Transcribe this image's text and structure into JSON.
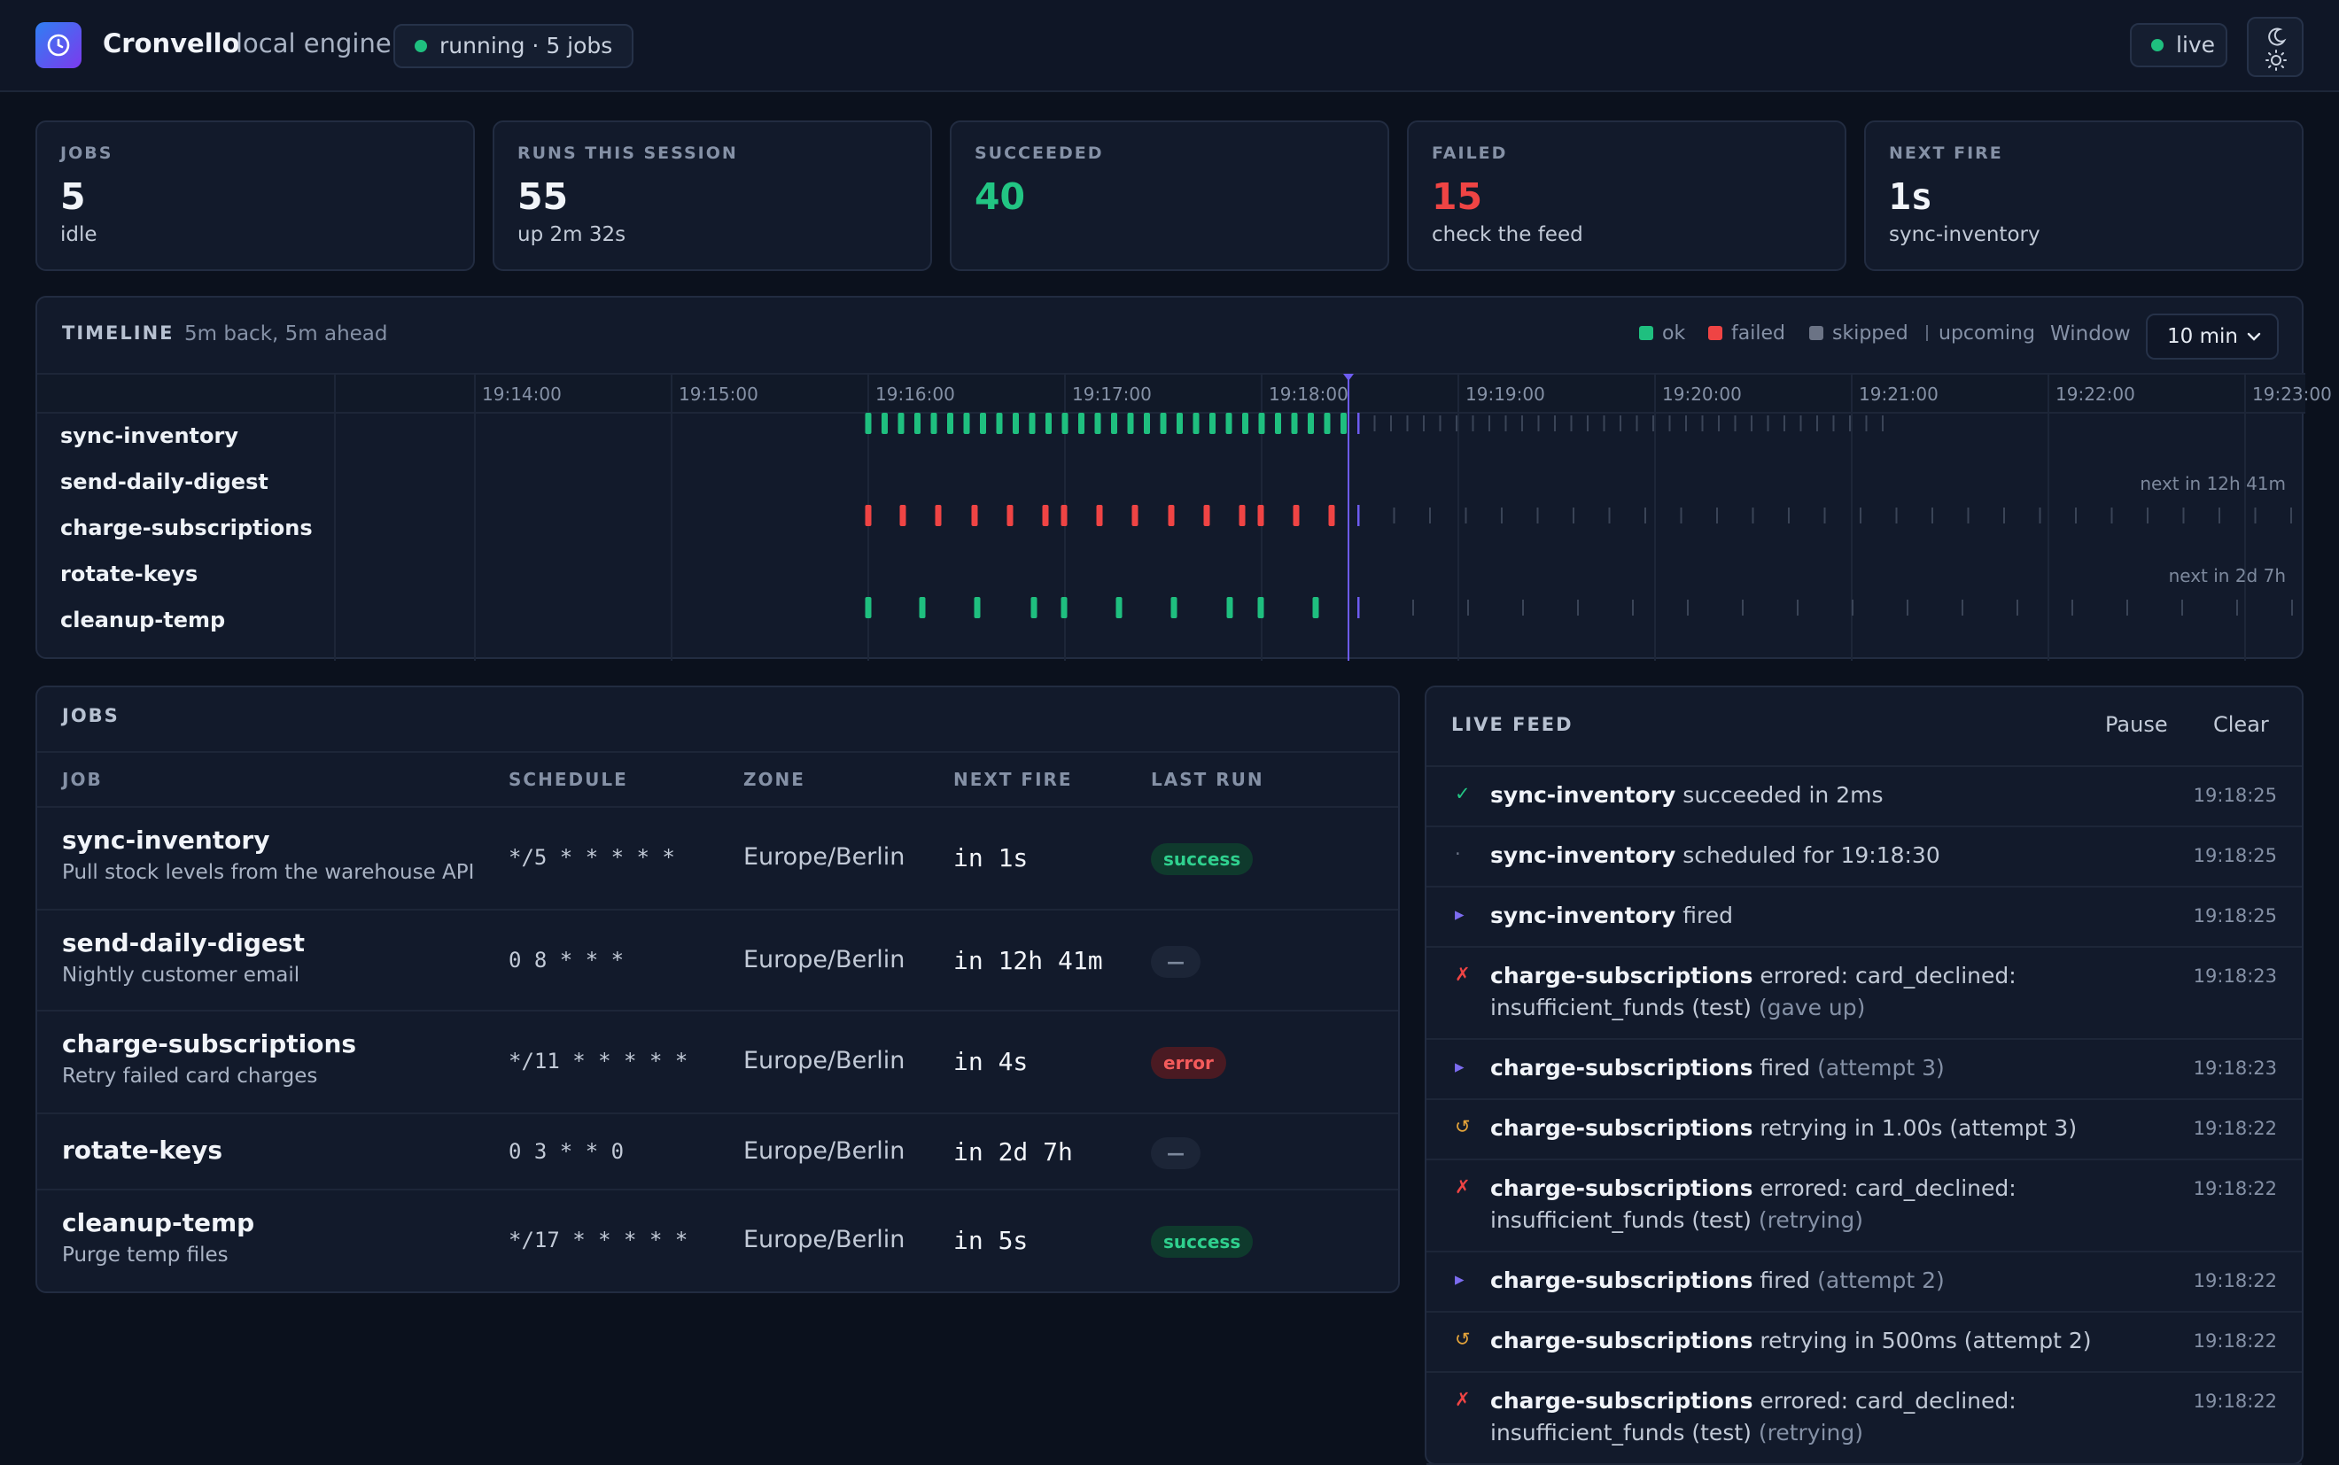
{
  "header": {
    "brand": "Cronvello",
    "engine": "local engine",
    "status": "running · 5 jobs",
    "live": "live",
    "colors": {
      "accent": "#7c3aed",
      "ok": "#1fbf7f",
      "failed": "#ef4444"
    }
  },
  "stats": [
    {
      "label": "JOBS",
      "value": "5",
      "sub": "idle"
    },
    {
      "label": "RUNS THIS SESSION",
      "value": "55",
      "sub": "up 2m 32s"
    },
    {
      "label": "SUCCEEDED",
      "value": "40",
      "sub": ""
    },
    {
      "label": "FAILED",
      "value": "15",
      "sub": "check the feed"
    },
    {
      "label": "NEXT FIRE",
      "value": "1s",
      "sub": "sync-inventory"
    }
  ],
  "timeline": {
    "title": "TIMELINE",
    "subtitle": "5m back, 5m ahead",
    "legend": {
      "ok": "ok",
      "failed": "failed",
      "skipped": "skipped",
      "upcoming": "upcoming"
    },
    "window_label": "Window",
    "window_value": "10 min",
    "ticks": [
      "19:14:00",
      "19:15:00",
      "19:16:00",
      "19:17:00",
      "19:18:00",
      "19:19:00",
      "19:20:00",
      "19:21:00",
      "19:22:00",
      "19:23:00"
    ],
    "rows": [
      {
        "name": "sync-inventory",
        "next_note": ""
      },
      {
        "name": "send-daily-digest",
        "next_note": "next in 12h 41m"
      },
      {
        "name": "charge-subscriptions",
        "next_note": ""
      },
      {
        "name": "rotate-keys",
        "next_note": "next in 2d 7h"
      },
      {
        "name": "cleanup-temp",
        "next_note": ""
      }
    ]
  },
  "jobs": {
    "title": "JOBS",
    "columns": {
      "job": "JOB",
      "schedule": "SCHEDULE",
      "zone": "ZONE",
      "next_fire": "NEXT FIRE",
      "last_run": "LAST RUN"
    },
    "rows": [
      {
        "name": "sync-inventory",
        "desc": "Pull stock levels from the warehouse API",
        "schedule": "*/5 * * * * *",
        "zone": "Europe/Berlin",
        "next": "in 1s",
        "last": "success"
      },
      {
        "name": "send-daily-digest",
        "desc": "Nightly customer email",
        "schedule": "0 8 * * *",
        "zone": "Europe/Berlin",
        "next": "in 12h 41m",
        "last": "—"
      },
      {
        "name": "charge-subscriptions",
        "desc": "Retry failed card charges",
        "schedule": "*/11 * * * * *",
        "zone": "Europe/Berlin",
        "next": "in 4s",
        "last": "error"
      },
      {
        "name": "rotate-keys",
        "desc": "",
        "schedule": "0 3 * * 0",
        "zone": "Europe/Berlin",
        "next": "in 2d 7h",
        "last": "—"
      },
      {
        "name": "cleanup-temp",
        "desc": "Purge temp files",
        "schedule": "*/17 * * * * *",
        "zone": "Europe/Berlin",
        "next": "in 5s",
        "last": "success"
      }
    ]
  },
  "feed": {
    "title": "LIVE FEED",
    "pause": "Pause",
    "clear": "Clear",
    "items": [
      {
        "icon": "✓",
        "job": "sync-inventory",
        "msg": " succeeded in 2ms",
        "detail": "",
        "time": "19:18:25"
      },
      {
        "icon": "·",
        "job": "sync-inventory",
        "msg": " scheduled for 19:18:30",
        "detail": "",
        "time": "19:18:25"
      },
      {
        "icon": "▸",
        "job": "sync-inventory",
        "msg": " fired",
        "detail": "",
        "time": "19:18:25"
      },
      {
        "icon": "✗",
        "job": "charge-subscriptions",
        "msg": " errored: card_declined: insufficient_funds (test)",
        "detail": " (gave up)",
        "time": "19:18:23"
      },
      {
        "icon": "▸",
        "job": "charge-subscriptions",
        "msg": " fired",
        "detail": " (attempt 3)",
        "time": "19:18:23"
      },
      {
        "icon": "↺",
        "job": "charge-subscriptions",
        "msg": " retrying in 1.00s (attempt 3)",
        "detail": "",
        "time": "19:18:22"
      },
      {
        "icon": "✗",
        "job": "charge-subscriptions",
        "msg": " errored: card_declined: insufficient_funds (test)",
        "detail": " (retrying)",
        "time": "19:18:22"
      },
      {
        "icon": "▸",
        "job": "charge-subscriptions",
        "msg": " fired",
        "detail": " (attempt 2)",
        "time": "19:18:22"
      },
      {
        "icon": "↺",
        "job": "charge-subscriptions",
        "msg": " retrying in 500ms (attempt 2)",
        "detail": "",
        "time": "19:18:22"
      },
      {
        "icon": "✗",
        "job": "charge-subscriptions",
        "msg": " errored: card_declined: insufficient_funds (test)",
        "detail": " (retrying)",
        "time": "19:18:22"
      }
    ]
  }
}
